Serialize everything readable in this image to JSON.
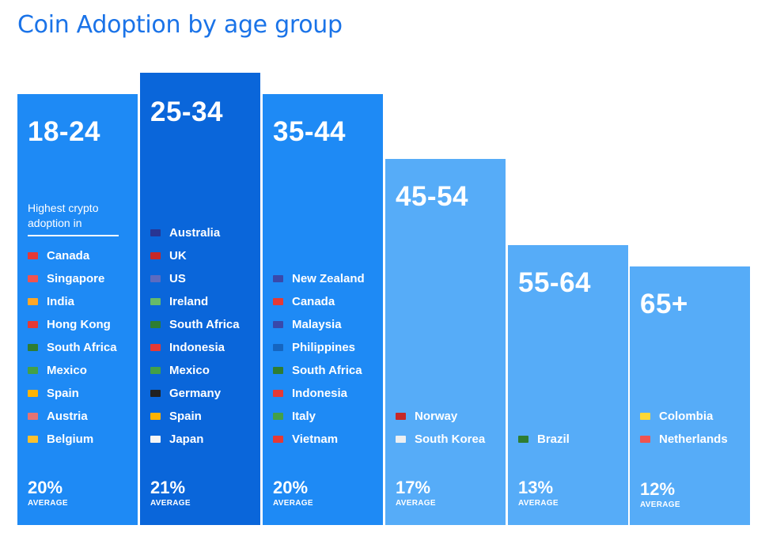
{
  "title": "Coin Adoption by age group",
  "chart_data": {
    "type": "bar",
    "categories": [
      "18-24",
      "25-34",
      "35-44",
      "45-54",
      "55-64",
      "65+"
    ],
    "values": [
      20,
      21,
      20,
      17,
      13,
      12
    ],
    "value_labels": [
      "20%",
      "21%",
      "20%",
      "17%",
      "13%",
      "12%"
    ],
    "value_caption": "AVERAGE",
    "ylim": [
      0,
      21
    ],
    "annotation": "Highest crypto adoption in",
    "countries": [
      [
        "Canada",
        "Singapore",
        "India",
        "Hong Kong",
        "South Africa",
        "Mexico",
        "Spain",
        "Austria",
        "Belgium"
      ],
      [
        "Australia",
        "UK",
        "US",
        "Ireland",
        "South Africa",
        "Indonesia",
        "Mexico",
        "Germany",
        "Spain",
        "Japan"
      ],
      [
        "New Zealand",
        "Canada",
        "Malaysia",
        "Philippines",
        "South Africa",
        "Indonesia",
        "Italy",
        "Vietnam"
      ],
      [
        "Norway",
        "South Korea"
      ],
      [
        "Brazil"
      ],
      [
        "Colombia",
        "Netherlands"
      ]
    ],
    "colors": [
      "#1e8af5",
      "#0a66da",
      "#1e8af5",
      "#56acf8",
      "#56acf8",
      "#56acf8"
    ]
  }
}
